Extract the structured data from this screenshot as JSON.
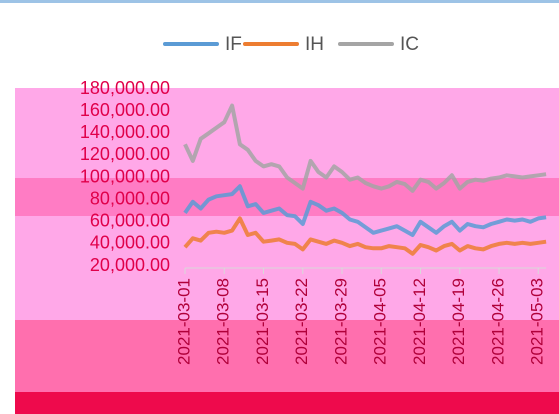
{
  "chart_data": {
    "type": "line",
    "categories": [
      "2021-03-01",
      null,
      null,
      null,
      null,
      "2021-03-08",
      null,
      null,
      null,
      null,
      "2021-03-15",
      null,
      null,
      null,
      null,
      "2021-03-22",
      null,
      null,
      null,
      null,
      "2021-03-29",
      null,
      null,
      null,
      null,
      "2021-04-05",
      null,
      null,
      null,
      null,
      "2021-04-12",
      null,
      null,
      null,
      null,
      "2021-04-19",
      null,
      null,
      null,
      null,
      "2021-04-26",
      null,
      null,
      null,
      null,
      "2021-05-03",
      null
    ],
    "series": [
      {
        "name": "IF",
        "color": "#5b9bd5",
        "values": [
          68000,
          78000,
          72000,
          80000,
          83000,
          84000,
          85000,
          92000,
          74000,
          76000,
          68000,
          70000,
          72000,
          66000,
          65000,
          58000,
          78000,
          75000,
          70000,
          72000,
          68000,
          62000,
          60000,
          55000,
          50000,
          52000,
          54000,
          56000,
          52000,
          48000,
          60000,
          55000,
          50000,
          56000,
          60000,
          52000,
          58000,
          56000,
          55000,
          58000,
          60000,
          62000,
          61000,
          62000,
          60000,
          63000,
          64000
        ]
      },
      {
        "name": "IH",
        "color": "#ed7d31",
        "values": [
          37000,
          45000,
          43000,
          50000,
          51000,
          50000,
          52000,
          63000,
          48000,
          50000,
          42000,
          43000,
          44000,
          41000,
          40000,
          35000,
          44000,
          42000,
          40000,
          43000,
          41000,
          38000,
          40000,
          37000,
          36000,
          36000,
          38000,
          37000,
          36000,
          31000,
          39000,
          37000,
          34000,
          38000,
          40000,
          34000,
          38000,
          36000,
          35000,
          38000,
          40000,
          41000,
          40000,
          41000,
          40000,
          41000,
          42000
        ]
      },
      {
        "name": "IC",
        "color": "#a5a5a5",
        "values": [
          130000,
          115000,
          135000,
          140000,
          145000,
          150000,
          165000,
          130000,
          125000,
          115000,
          110000,
          112000,
          110000,
          100000,
          95000,
          90000,
          115000,
          105000,
          100000,
          110000,
          105000,
          98000,
          100000,
          95000,
          92000,
          90000,
          92000,
          96000,
          94000,
          88000,
          98000,
          96000,
          90000,
          95000,
          102000,
          90000,
          96000,
          98000,
          97000,
          99000,
          100000,
          102000,
          101000,
          100000,
          101000,
          102000,
          103000
        ]
      }
    ],
    "ylim": [
      20000,
      180000
    ],
    "yticks": [
      {
        "value": 20000,
        "label": "20,000.00"
      },
      {
        "value": 40000,
        "label": "40,000.00"
      },
      {
        "value": 60000,
        "label": "60,000.00"
      },
      {
        "value": 80000,
        "label": "80,000.00"
      },
      {
        "value": 100000,
        "label": "100,000.00"
      },
      {
        "value": 120000,
        "label": "120,000.00"
      },
      {
        "value": 140000,
        "label": "140,000.00"
      },
      {
        "value": 160000,
        "label": "160,000.00"
      },
      {
        "value": 180000,
        "label": "180,000.00"
      }
    ],
    "legend": "top"
  }
}
